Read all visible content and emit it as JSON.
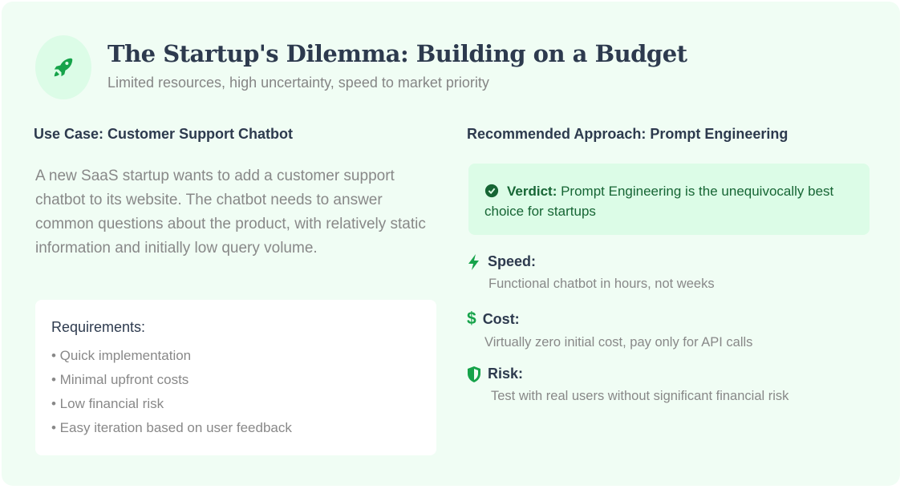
{
  "header": {
    "icon": "rocket-icon",
    "title": "The Startup's Dilemma: Building on a Budget",
    "subtitle": "Limited resources, high uncertainty, speed to market priority"
  },
  "left": {
    "heading": "Use Case: Customer Support Chatbot",
    "description": "A new SaaS startup wants to add a customer support chatbot to its website. The chatbot needs to answer common questions about the product, with relatively static information and initially low query volume.",
    "requirements": {
      "title": "Requirements:",
      "items": [
        "• Quick implementation",
        "• Minimal upfront costs",
        "• Low financial risk",
        "• Easy iteration based on user feedback"
      ]
    }
  },
  "right": {
    "heading": "Recommended Approach: Prompt Engineering",
    "verdict": {
      "label": "Verdict:",
      "text": " Prompt Engineering is the unequivocally best choice for startups"
    },
    "points": [
      {
        "icon": "bolt-icon",
        "title": "Speed:",
        "desc": "Functional chatbot in hours, not weeks"
      },
      {
        "icon": "dollar-icon",
        "title": "Cost:",
        "desc": "Virtually zero initial cost, pay only for API calls"
      },
      {
        "icon": "shield-icon",
        "title": "Risk:",
        "desc": "Test with real users without significant financial risk"
      }
    ]
  },
  "colors": {
    "accent": "#16a34a",
    "card_bg": "#f0fdf4",
    "verdict_bg": "#dcfce7",
    "heading": "#2d3a4e"
  }
}
